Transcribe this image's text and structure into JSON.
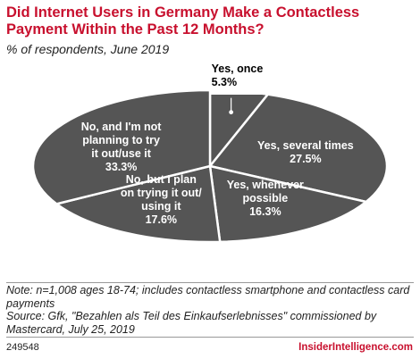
{
  "header": {
    "title": "Did Internet Users in Germany Make a Contactless Payment Within the Past 12 Months?",
    "subtitle": "% of respondents, June 2019"
  },
  "chart_data": {
    "type": "pie",
    "title": "Did Internet Users in Germany Make a Contactless Payment Within the Past 12 Months?",
    "subtitle": "% of respondents, June 2019",
    "slices": [
      {
        "label": [
          "Yes, once"
        ],
        "value": 5.3,
        "value_label": "5.3%"
      },
      {
        "label": [
          "Yes, several times"
        ],
        "value": 27.5,
        "value_label": "27.5%"
      },
      {
        "label": [
          "Yes, whenever",
          "possible"
        ],
        "value": 16.3,
        "value_label": "16.3%"
      },
      {
        "label": [
          "No, but I plan",
          "on trying it out/",
          "using it"
        ],
        "value": 17.6,
        "value_label": "17.6%"
      },
      {
        "label": [
          "No, and I'm not",
          "planning to try",
          "it out/use it"
        ],
        "value": 33.3,
        "value_label": "33.3%"
      }
    ],
    "colors": {
      "fill": "#555555",
      "edge": "#ffffff",
      "text": "#ffffff",
      "outside_text": "#000000"
    }
  },
  "footer": {
    "note": "Note: n=1,008 ages 18-74; includes contactless smartphone and contactless card payments",
    "source": "Source: Gfk, \"Bezahlen als Teil des Einkaufserlebnisses\" commissioned by Mastercard, July 25, 2019",
    "chart_id": "249548",
    "brand": "InsiderIntelligence.com",
    "brand_color": "#c8102e"
  }
}
